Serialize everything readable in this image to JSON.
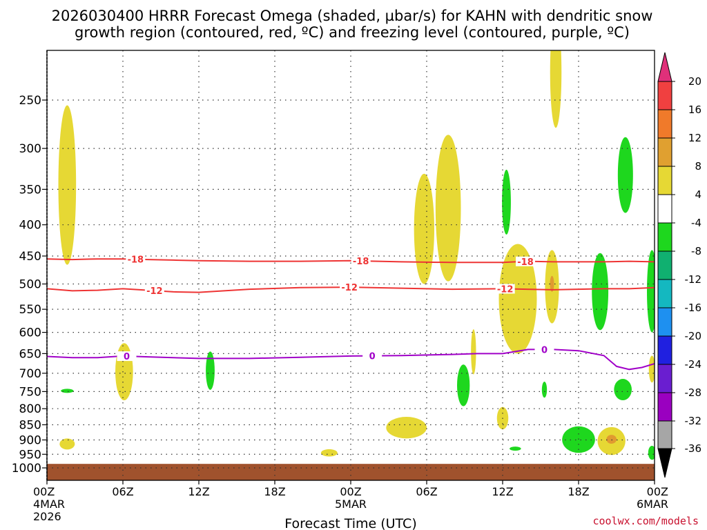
{
  "chart_data": {
    "type": "heatmap",
    "title": {
      "line1": "2026030400 HRRR Forecast Omega (shaded, µbar/s) for KAHN with dendritic snow",
      "line2": "growth region (contoured, red, ºC) and freezing level (contoured, purple, ºC)"
    },
    "xlabel": "Forecast Time (UTC)",
    "ylabel": "",
    "xlim_hours": [
      0,
      48
    ],
    "ylim_hpa": [
      1050,
      200
    ],
    "x_ticks": [
      {
        "h": 0,
        "label": "00Z",
        "sub": "4MAR",
        "sub2": "2026"
      },
      {
        "h": 6,
        "label": "06Z"
      },
      {
        "h": 12,
        "label": "12Z"
      },
      {
        "h": 18,
        "label": "18Z"
      },
      {
        "h": 24,
        "label": "00Z",
        "sub": "5MAR"
      },
      {
        "h": 30,
        "label": "06Z"
      },
      {
        "h": 36,
        "label": "12Z"
      },
      {
        "h": 42,
        "label": "18Z"
      },
      {
        "h": 48,
        "label": "00Z",
        "sub": "6MAR"
      }
    ],
    "y_ticks": [
      250,
      300,
      350,
      400,
      450,
      500,
      550,
      600,
      650,
      700,
      750,
      800,
      850,
      900,
      950,
      1000
    ],
    "grid": true,
    "contours": [
      {
        "name": "dgz-top",
        "label": "-18",
        "color": "#ee3333",
        "x": [
          0,
          2,
          4,
          6,
          8,
          10,
          12,
          16,
          20,
          24,
          28,
          32,
          36,
          38,
          40,
          44,
          46,
          48
        ],
        "p": [
          455,
          456,
          455,
          455,
          456,
          457,
          458,
          459,
          459,
          458,
          460,
          461,
          461,
          459,
          460,
          460,
          459,
          460
        ],
        "label_at": [
          7,
          24.8,
          37.8
        ]
      },
      {
        "name": "dgz-bottom",
        "label": "-12",
        "color": "#ee3333",
        "x": [
          0,
          2,
          4,
          6,
          8,
          10,
          12,
          16,
          20,
          24,
          28,
          32,
          36,
          40,
          44,
          46,
          48
        ],
        "p": [
          509,
          513,
          512,
          509,
          512,
          515,
          516,
          510,
          507,
          506,
          508,
          510,
          509,
          511,
          509,
          509,
          507
        ],
        "label_at": [
          8.5,
          23.9,
          36.2
        ]
      },
      {
        "name": "freezing-level",
        "label": "0",
        "color": "#a000c8",
        "x": [
          0,
          2,
          4,
          6,
          8,
          12,
          16,
          20,
          24,
          28,
          32,
          34,
          36,
          38,
          40,
          42,
          44,
          45,
          46,
          47,
          48
        ],
        "p": [
          657,
          660,
          660,
          656,
          658,
          662,
          662,
          659,
          656,
          655,
          652,
          650,
          650,
          640,
          640,
          643,
          655,
          682,
          690,
          685,
          675
        ],
        "label_at": [
          6.3,
          25.7,
          39.3
        ]
      }
    ],
    "omega_regions": [
      {
        "color": "#e6d834",
        "range": "4 to 8",
        "x": [
          0.8,
          2.5,
          0.8,
          2.5
        ],
        "p": [
          250,
          250,
          465,
          465
        ],
        "cx": 1.6,
        "cp": 360,
        "w": 1.4,
        "h": 210
      },
      {
        "color": "#e6d834",
        "range": "4 to 8",
        "x": [
          1.2,
          1.7
        ],
        "p": [
          905,
          925
        ],
        "cx": 1.6,
        "cp": 914,
        "w": 1.2,
        "h": 38
      },
      {
        "color": "#e6d834",
        "range": "4 to 8",
        "cx": 6.1,
        "cp": 700,
        "w": 1.4,
        "h": 150
      },
      {
        "color": "#e6d834",
        "range": "4 to 8",
        "cx": 22.3,
        "cp": 945,
        "w": 1.3,
        "h": 26
      },
      {
        "color": "#e6d834",
        "range": "4 to 8",
        "cx": 28.4,
        "cp": 860,
        "w": 3.2,
        "h": 70
      },
      {
        "color": "#e6d834",
        "range": "4 to 8",
        "cx": 29.8,
        "cp": 415,
        "w": 1.6,
        "h": 170
      },
      {
        "color": "#e6d834",
        "range": "4 to 8",
        "cx": 31.7,
        "cp": 390,
        "w": 2.0,
        "h": 210
      },
      {
        "color": "#e6d834",
        "range": "4 to 8",
        "cx": 33.7,
        "cp": 648,
        "w": 0.4,
        "h": 110
      },
      {
        "color": "#e6d834",
        "range": "4 to 8",
        "cx": 36.0,
        "cp": 830,
        "w": 0.9,
        "h": 70
      },
      {
        "color": "#e6d834",
        "range": "4 to 8",
        "cx": 37.2,
        "cp": 540,
        "w": 3.0,
        "h": 220
      },
      {
        "color": "#e6d834",
        "range": "4 to 8",
        "cx": 40.2,
        "cp": 230,
        "w": 0.9,
        "h": 95
      },
      {
        "color": "#e6d834",
        "range": "4 to 8",
        "cx": 39.9,
        "cp": 510,
        "w": 1.1,
        "h": 140
      },
      {
        "color": "#e6d834",
        "range": "4 to 8",
        "cx": 44.6,
        "cp": 905,
        "w": 2.2,
        "h": 95
      },
      {
        "color": "#e6d834",
        "range": "4 to 8",
        "cx": 47.8,
        "cp": 690,
        "w": 0.5,
        "h": 70
      },
      {
        "color": "#e09a30",
        "range": "8 to 12",
        "cx": 44.6,
        "cp": 898,
        "w": 0.8,
        "h": 30
      },
      {
        "color": "#e09a30",
        "range": "8 to 12",
        "cx": 39.9,
        "cp": 500,
        "w": 0.3,
        "h": 30
      },
      {
        "color": "#1ed71e",
        "range": "-8 to -4",
        "cx": 1.6,
        "cp": 748,
        "w": 1.0,
        "h": 8
      },
      {
        "color": "#1ed71e",
        "range": "-8 to -4",
        "cx": 12.9,
        "cp": 695,
        "w": 0.7,
        "h": 100
      },
      {
        "color": "#1ed71e",
        "range": "-8 to -4",
        "cx": 32.9,
        "cp": 735,
        "w": 1.0,
        "h": 115
      },
      {
        "color": "#1ed71e",
        "range": "-8 to -4",
        "cx": 36.3,
        "cp": 370,
        "w": 0.7,
        "h": 90
      },
      {
        "color": "#1ed71e",
        "range": "-8 to -4",
        "cx": 37.0,
        "cp": 930,
        "w": 0.9,
        "h": 14
      },
      {
        "color": "#1ed71e",
        "range": "-8 to -4",
        "cx": 39.3,
        "cp": 745,
        "w": 0.4,
        "h": 45
      },
      {
        "color": "#1ed71e",
        "range": "-8 to -4",
        "cx": 42.0,
        "cp": 900,
        "w": 2.6,
        "h": 90
      },
      {
        "color": "#1ed71e",
        "range": "-8 to -4",
        "cx": 43.7,
        "cp": 520,
        "w": 1.3,
        "h": 150
      },
      {
        "color": "#1ed71e",
        "range": "-8 to -4",
        "cx": 45.5,
        "cp": 745,
        "w": 1.4,
        "h": 60
      },
      {
        "color": "#1ed71e",
        "range": "-8 to -4",
        "cx": 45.7,
        "cp": 335,
        "w": 1.2,
        "h": 95
      },
      {
        "color": "#1ed71e",
        "range": "-8 to -4",
        "cx": 47.8,
        "cp": 520,
        "w": 0.8,
        "h": 160
      },
      {
        "color": "#1ed71e",
        "range": "-8 to -4",
        "cx": 47.8,
        "cp": 945,
        "w": 0.6,
        "h": 50
      }
    ],
    "terrain": {
      "color": "#a0522d",
      "top_hpa": 985,
      "bottom_hpa": 1040
    },
    "colorbar": {
      "unit": "µbar/s",
      "bins": [
        {
          "lo": 20,
          "hi": null,
          "color": "#e0307a"
        },
        {
          "lo": 16,
          "hi": 20,
          "color": "#f04040"
        },
        {
          "lo": 12,
          "hi": 16,
          "color": "#f07a2a"
        },
        {
          "lo": 8,
          "hi": 12,
          "color": "#e0a030"
        },
        {
          "lo": 4,
          "hi": 8,
          "color": "#e6d834"
        },
        {
          "lo": -4,
          "hi": 4,
          "color": "#ffffff"
        },
        {
          "lo": -8,
          "hi": -4,
          "color": "#1ed71e"
        },
        {
          "lo": -12,
          "hi": -8,
          "color": "#10b070"
        },
        {
          "lo": -16,
          "hi": -12,
          "color": "#14b8c0"
        },
        {
          "lo": -20,
          "hi": -16,
          "color": "#1e90f0"
        },
        {
          "lo": -24,
          "hi": -20,
          "color": "#2020e0"
        },
        {
          "lo": -28,
          "hi": -24,
          "color": "#6a1ed0"
        },
        {
          "lo": -32,
          "hi": -28,
          "color": "#9a00c0"
        },
        {
          "lo": -36,
          "hi": -32,
          "color": "#a6a6a6"
        },
        {
          "lo": null,
          "hi": -36,
          "color": "#000000"
        }
      ],
      "labels": [
        "20",
        "16",
        "12",
        "8",
        "4",
        "-4",
        "-8",
        "-12",
        "-16",
        "-20",
        "-24",
        "-28",
        "-32",
        "-36"
      ]
    },
    "credit": "coolwx.com/models"
  }
}
